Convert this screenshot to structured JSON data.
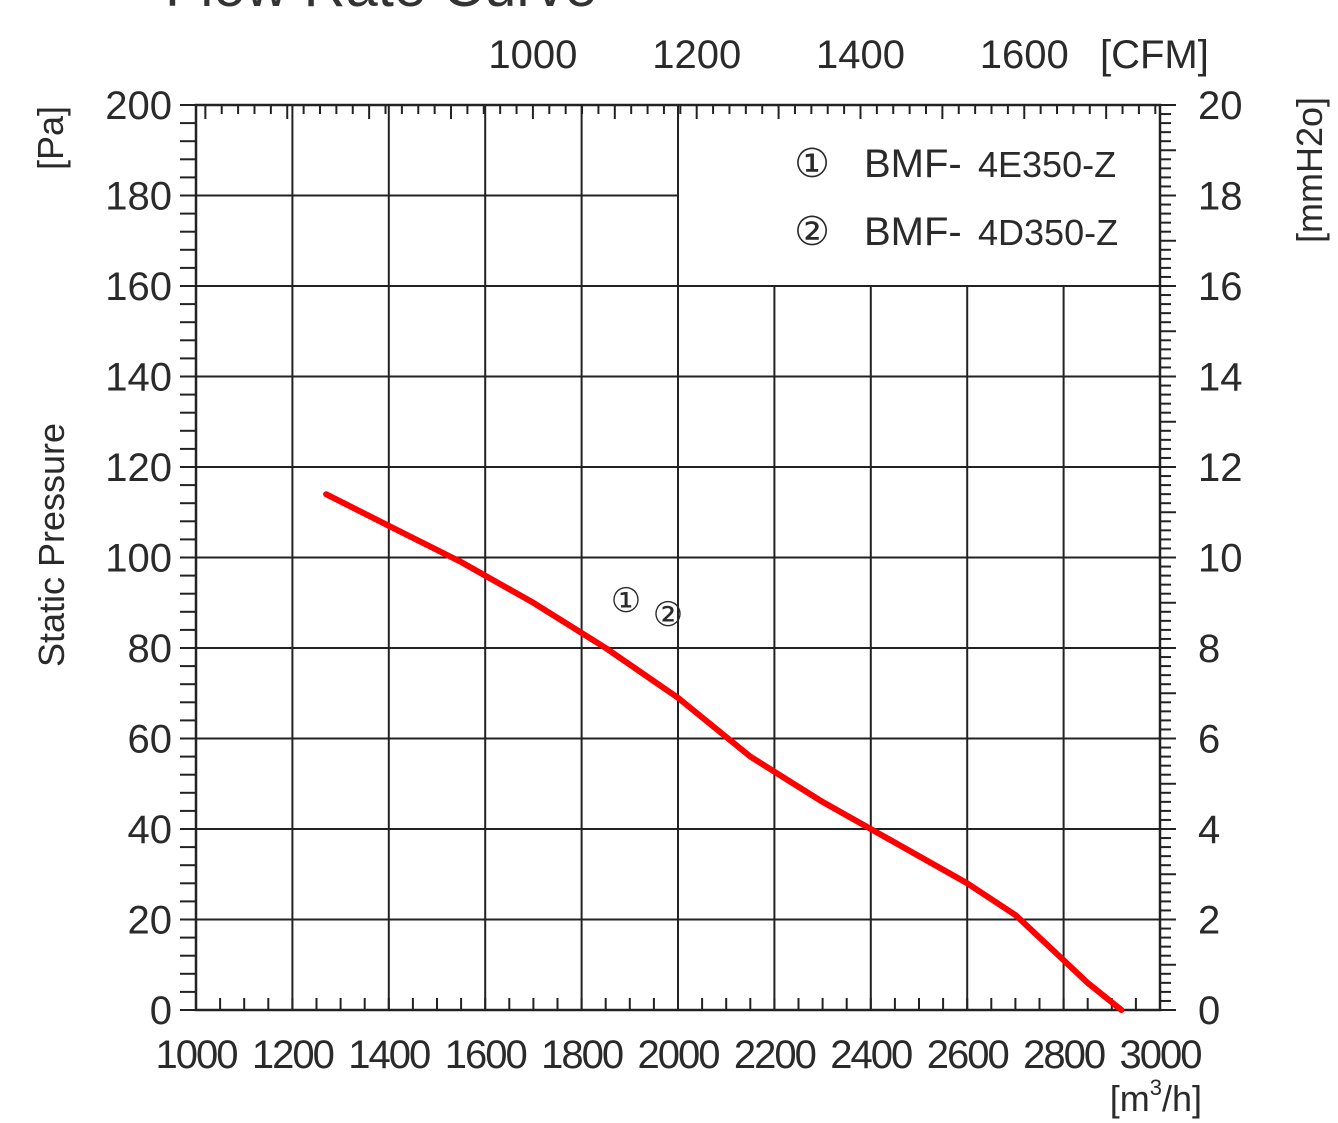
{
  "chart_data": {
    "type": "line",
    "title": "Flow Rate Curve",
    "ylabel": "Static Pressure",
    "x_unit": "[m³/h]",
    "x_unit_main": "[m",
    "x_unit_sup": "3",
    "x_unit_end": "/h]",
    "x_top_unit": "[CFM]",
    "y_unit": "[Pa]",
    "y_right_unit": "[mmH2o]",
    "xlim": [
      1000,
      3000
    ],
    "ylim": [
      0,
      200
    ],
    "x_ticks": [
      "1000",
      "1200",
      "1400",
      "1600",
      "1800",
      "2000",
      "2200",
      "2400",
      "2600",
      "2800",
      "3000"
    ],
    "y_ticks": [
      "0",
      "20",
      "40",
      "60",
      "80",
      "100",
      "120",
      "140",
      "160",
      "180",
      "200"
    ],
    "x_top_ticks": [
      "1000",
      "1200",
      "1400",
      "1600"
    ],
    "x_top_values": [
      1000,
      1200,
      1400,
      1600
    ],
    "y_right_ticks": [
      "0",
      "2",
      "4",
      "6",
      "8",
      "10",
      "12",
      "14",
      "16",
      "18",
      "20"
    ],
    "grid": true,
    "legend_position": "top-right",
    "legend": [
      {
        "marker": "①",
        "prefix": "BMF-",
        "model": "4E350-Z"
      },
      {
        "marker": "②",
        "prefix": "BMF-",
        "model": "4D350-Z"
      }
    ],
    "curve_annotation": {
      "labels": [
        "①",
        "②"
      ]
    },
    "series": [
      {
        "color": "#ff0000",
        "x": [
          1270,
          1400,
          1550,
          1700,
          1850,
          2000,
          2150,
          2300,
          2400,
          2500,
          2600,
          2700,
          2800,
          2850,
          2920
        ],
        "y": [
          114,
          107,
          99,
          90,
          80,
          69,
          56,
          46,
          40,
          34,
          28,
          21,
          11,
          6,
          0
        ]
      }
    ]
  }
}
